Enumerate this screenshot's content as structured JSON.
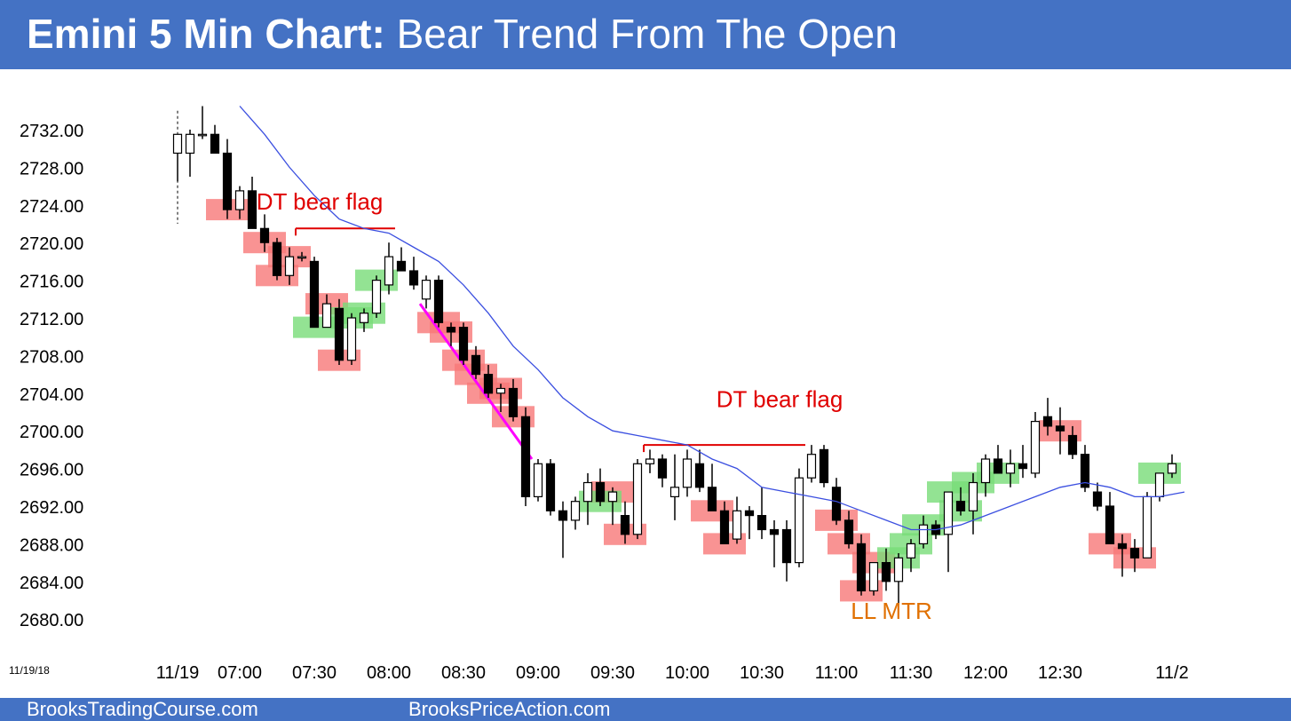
{
  "header": {
    "title_bold": "Emini 5 Min Chart:",
    "title_rest": "Bear Trend From The Open",
    "background": "#4472c4"
  },
  "footer": {
    "left_link": "BrooksTradingCourse.com",
    "right_link": "BrooksPriceAction.com"
  },
  "chart_date_label": "11/19/18",
  "chart_data": {
    "type": "candlestick",
    "ylim": [
      2676,
      2736
    ],
    "y_ticks": [
      "2732.00",
      "2728.00",
      "2724.00",
      "2720.00",
      "2716.00",
      "2712.00",
      "2708.00",
      "2704.00",
      "2700.00",
      "2696.00",
      "2692.00",
      "2688.00",
      "2684.00",
      "2680.00"
    ],
    "x_ticks": [
      {
        "bar": 0,
        "label": "11/19"
      },
      {
        "bar": 5,
        "label": "07:00"
      },
      {
        "bar": 11,
        "label": "07:30"
      },
      {
        "bar": 17,
        "label": "08:00"
      },
      {
        "bar": 23,
        "label": "08:30"
      },
      {
        "bar": 29,
        "label": "09:00"
      },
      {
        "bar": 35,
        "label": "09:30"
      },
      {
        "bar": 41,
        "label": "10:00"
      },
      {
        "bar": 47,
        "label": "10:30"
      },
      {
        "bar": 53,
        "label": "11:00"
      },
      {
        "bar": 59,
        "label": "11:30"
      },
      {
        "bar": 65,
        "label": "12:00"
      },
      {
        "bar": 71,
        "label": "12:30"
      },
      {
        "bar": 80,
        "label": "11/2"
      }
    ],
    "bars": [
      [
        2729.5,
        2731.5,
        2726.5,
        2731.5
      ],
      [
        2729.5,
        2732.0,
        2727.0,
        2731.5
      ],
      [
        2731.5,
        2734.5,
        2731.0,
        2731.5
      ],
      [
        2731.5,
        2732.5,
        2729.5,
        2729.5
      ],
      [
        2729.5,
        2731.0,
        2722.5,
        2723.5
      ],
      [
        2723.5,
        2726.0,
        2722.5,
        2725.5
      ],
      [
        2725.5,
        2727.0,
        2722.5,
        2721.5
      ],
      [
        2721.5,
        2723.0,
        2719.0,
        2720.0
      ],
      [
        2720.0,
        2720.5,
        2716.0,
        2716.5
      ],
      [
        2716.5,
        2719.5,
        2715.5,
        2718.5
      ],
      [
        2718.5,
        2719.0,
        2718.0,
        2718.5
      ],
      [
        2718.0,
        2718.5,
        2711.5,
        2711.0
      ],
      [
        2711.0,
        2714.5,
        2711.0,
        2713.5
      ],
      [
        2713.0,
        2714.0,
        2707.0,
        2707.5
      ],
      [
        2707.5,
        2712.5,
        2707.0,
        2712.0
      ],
      [
        2711.5,
        2713.0,
        2710.5,
        2712.5
      ],
      [
        2712.5,
        2716.5,
        2712.0,
        2716.0
      ],
      [
        2715.5,
        2720.0,
        2714.5,
        2718.5
      ],
      [
        2718.0,
        2719.5,
        2717.0,
        2717.0
      ],
      [
        2717.0,
        2718.5,
        2715.0,
        2715.5
      ],
      [
        2714.0,
        2716.5,
        2713.0,
        2716.0
      ],
      [
        2716.0,
        2716.5,
        2711.0,
        2711.5
      ],
      [
        2711.0,
        2711.5,
        2709.0,
        2710.5
      ],
      [
        2711.0,
        2711.5,
        2707.0,
        2707.5
      ],
      [
        2708.0,
        2709.0,
        2705.5,
        2706.0
      ],
      [
        2706.0,
        2707.0,
        2703.5,
        2704.0
      ],
      [
        2704.0,
        2705.0,
        2702.0,
        2704.5
      ],
      [
        2704.5,
        2705.5,
        2701.0,
        2701.5
      ],
      [
        2701.5,
        2702.5,
        2692.0,
        2693.0
      ],
      [
        2693.0,
        2697.0,
        2692.5,
        2696.5
      ],
      [
        2696.5,
        2697.0,
        2691.0,
        2691.5
      ],
      [
        2691.5,
        2692.5,
        2686.5,
        2690.5
      ],
      [
        2690.5,
        2693.0,
        2689.5,
        2692.5
      ],
      [
        2692.5,
        2695.5,
        2690.0,
        2694.5
      ],
      [
        2694.5,
        2696.0,
        2692.0,
        2692.5
      ],
      [
        2692.5,
        2694.0,
        2690.0,
        2693.5
      ],
      [
        2691.0,
        2692.5,
        2688.0,
        2689.0
      ],
      [
        2689.0,
        2697.0,
        2688.5,
        2696.5
      ],
      [
        2696.5,
        2698.0,
        2695.5,
        2697.0
      ],
      [
        2697.0,
        2697.5,
        2694.0,
        2695.0
      ],
      [
        2693.0,
        2697.5,
        2690.5,
        2694.0
      ],
      [
        2694.0,
        2698.0,
        2693.0,
        2697.0
      ],
      [
        2696.5,
        2698.0,
        2693.5,
        2694.0
      ],
      [
        2694.0,
        2696.5,
        2691.5,
        2691.5
      ],
      [
        2691.5,
        2692.5,
        2688.5,
        2688.0
      ],
      [
        2688.5,
        2693.0,
        2688.0,
        2691.5
      ],
      [
        2691.5,
        2692.0,
        2688.5,
        2691.0
      ],
      [
        2691.0,
        2694.0,
        2688.5,
        2689.5
      ],
      [
        2689.5,
        2690.5,
        2685.5,
        2689.0
      ],
      [
        2689.5,
        2690.5,
        2684.0,
        2686.0
      ],
      [
        2686.0,
        2696.0,
        2685.5,
        2695.0
      ],
      [
        2695.0,
        2698.5,
        2694.5,
        2697.5
      ],
      [
        2698.0,
        2698.5,
        2694.0,
        2694.5
      ],
      [
        2694.0,
        2695.0,
        2690.0,
        2690.5
      ],
      [
        2690.5,
        2691.5,
        2687.5,
        2688.0
      ],
      [
        2688.0,
        2689.0,
        2682.5,
        2683.0
      ],
      [
        2683.0,
        2686.0,
        2682.5,
        2686.0
      ],
      [
        2686.0,
        2687.5,
        2683.0,
        2684.0
      ],
      [
        2684.0,
        2687.0,
        2681.5,
        2686.5
      ],
      [
        2686.5,
        2688.5,
        2685.0,
        2688.0
      ],
      [
        2688.0,
        2691.0,
        2687.5,
        2690.0
      ],
      [
        2690.0,
        2690.5,
        2688.5,
        2689.0
      ],
      [
        2689.0,
        2693.5,
        2685.0,
        2693.5
      ],
      [
        2692.5,
        2694.0,
        2691.0,
        2691.5
      ],
      [
        2691.5,
        2695.5,
        2689.0,
        2694.5
      ],
      [
        2694.5,
        2697.5,
        2693.0,
        2697.0
      ],
      [
        2697.0,
        2698.5,
        2695.5,
        2695.5
      ],
      [
        2695.5,
        2698.0,
        2694.0,
        2696.5
      ],
      [
        2696.5,
        2698.5,
        2695.0,
        2696.0
      ],
      [
        2695.5,
        2702.0,
        2695.0,
        2701.0
      ],
      [
        2701.5,
        2703.5,
        2699.5,
        2700.5
      ],
      [
        2700.5,
        2702.5,
        2697.5,
        2700.0
      ],
      [
        2699.5,
        2700.5,
        2697.0,
        2697.5
      ],
      [
        2697.5,
        2698.5,
        2693.5,
        2694.0
      ],
      [
        2693.5,
        2694.5,
        2691.5,
        2692.0
      ],
      [
        2692.0,
        2693.5,
        2688.0,
        2688.0
      ],
      [
        2688.0,
        2689.0,
        2684.5,
        2687.5
      ],
      [
        2687.5,
        2688.5,
        2685.0,
        2686.5
      ],
      [
        2686.5,
        2693.5,
        2686.5,
        2693.0
      ],
      [
        2693.0,
        2695.5,
        2692.5,
        2695.5
      ],
      [
        2695.5,
        2697.5,
        2695.0,
        2696.5
      ]
    ],
    "ema": [
      [
        5,
        2734.5
      ],
      [
        7,
        2731.5
      ],
      [
        9,
        2728.0
      ],
      [
        11,
        2725.0
      ],
      [
        13,
        2722.5
      ],
      [
        15,
        2721.5
      ],
      [
        17,
        2721.0
      ],
      [
        19,
        2719.5
      ],
      [
        21,
        2718.0
      ],
      [
        23,
        2715.5
      ],
      [
        25,
        2712.5
      ],
      [
        27,
        2709.0
      ],
      [
        29,
        2706.5
      ],
      [
        31,
        2703.5
      ],
      [
        33,
        2701.5
      ],
      [
        35,
        2700.0
      ],
      [
        37,
        2699.5
      ],
      [
        39,
        2699.0
      ],
      [
        41,
        2698.5
      ],
      [
        43,
        2697.0
      ],
      [
        45,
        2696.0
      ],
      [
        47,
        2694.0
      ],
      [
        49,
        2693.5
      ],
      [
        51,
        2693.0
      ],
      [
        53,
        2692.5
      ],
      [
        55,
        2691.5
      ],
      [
        57,
        2690.5
      ],
      [
        59,
        2689.5
      ],
      [
        61,
        2689.5
      ],
      [
        63,
        2690.0
      ],
      [
        65,
        2691.0
      ],
      [
        67,
        2692.0
      ],
      [
        69,
        2693.0
      ],
      [
        71,
        2694.0
      ],
      [
        73,
        2694.5
      ],
      [
        75,
        2694.0
      ],
      [
        77,
        2693.0
      ],
      [
        79,
        2693.0
      ],
      [
        81,
        2693.5
      ]
    ],
    "highlights": {
      "red": [
        4,
        7,
        8,
        9,
        12,
        13,
        21,
        22,
        23,
        24,
        25,
        26,
        27,
        35,
        36,
        43,
        44,
        53,
        54,
        55,
        56,
        71,
        75,
        77
      ],
      "green": [
        11,
        14,
        15,
        16,
        34,
        58,
        59,
        60,
        62,
        63,
        64,
        66,
        79
      ]
    },
    "annotations": [
      {
        "text": "DT bear flag",
        "bar": 10,
        "price": 2723.5,
        "color": "#e00000"
      },
      {
        "text": "DT bear flag",
        "bar": 47,
        "price": 2702.5,
        "color": "#e00000"
      },
      {
        "text": "LL MTR",
        "bar": 56,
        "price": 2680.0,
        "color": "#e07000"
      }
    ],
    "lines": [
      {
        "name": "dt-line-1",
        "x1": 9.5,
        "y1": 2721.5,
        "x2": 17.5,
        "y2": 2721.5,
        "color": "#e00000"
      },
      {
        "name": "dt-line-2",
        "x1": 37.5,
        "y1": 2698.5,
        "x2": 50.5,
        "y2": 2698.5,
        "color": "#e00000"
      },
      {
        "name": "trendline",
        "x1": 19.5,
        "y1": 2713.5,
        "x2": 28.5,
        "y2": 2697.0,
        "color": "#ff00ff"
      }
    ],
    "colors": {
      "bull_fill": "#ffffff",
      "bear_fill": "#000000",
      "ema": "#3b4fe0",
      "red_zone": "#f87878",
      "green_zone": "#78dc78"
    }
  }
}
